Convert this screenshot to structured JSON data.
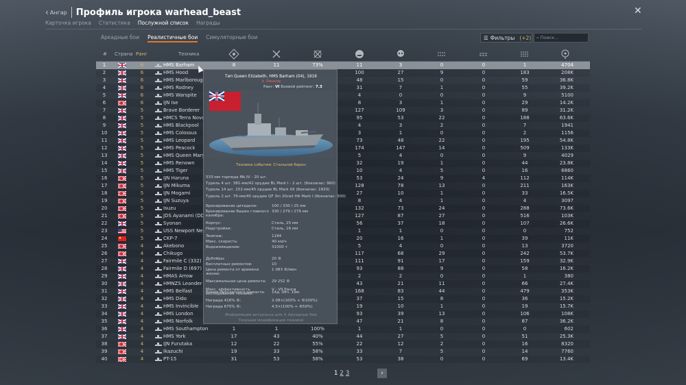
{
  "header": {
    "back_label": "Ангар",
    "title": "Профиль игрока warhead_beast"
  },
  "subtabs": [
    "Карточка игрока",
    "Статистика",
    "Послужной список",
    "Награды"
  ],
  "mode_tabs": [
    "Аркадные бои",
    "Реалистичные бои",
    "Симуляторные бои"
  ],
  "filters": {
    "label": "Фильтры",
    "count": "(+2)"
  },
  "search": {
    "placeholder": "Поиск..."
  },
  "columns": {
    "num": "#",
    "country": "Страна",
    "rank": "Ранг",
    "vehicle": "Техника",
    "icons": [
      "battles-icon",
      "victories-icon",
      "win-rate-icon",
      "ships-destroyed-icon",
      "deaths-icon",
      "aircraft-destroyed-icon",
      "ground-destroyed-icon",
      "naval-destroyed-icon",
      "score-icon"
    ]
  },
  "rows": [
    {
      "n": "1",
      "flag": "uk",
      "rank": "6",
      "name": "HMS Barham",
      "c1": "8",
      "c2": "11",
      "c3": "73%",
      "c4": "11",
      "c5": "3",
      "c6": "0",
      "c7": "0",
      "c8": "1",
      "c9": "4704"
    },
    {
      "n": "2",
      "flag": "uk",
      "rank": "6",
      "name": "HMS Hood",
      "c1": "",
      "c2": "",
      "c3": "",
      "c4": "100",
      "c5": "27",
      "c6": "9",
      "c7": "0",
      "c8": "183",
      "c9": "208K"
    },
    {
      "n": "3",
      "flag": "uk",
      "rank": "6",
      "name": "HMS Marlborough",
      "c1": "",
      "c2": "",
      "c3": "",
      "c4": "48",
      "c5": "15",
      "c6": "0",
      "c7": "0",
      "c8": "59",
      "c9": "36.8K"
    },
    {
      "n": "4",
      "flag": "uk",
      "rank": "6",
      "name": "HMS Rodney",
      "c1": "",
      "c2": "",
      "c3": "",
      "c4": "31",
      "c5": "7",
      "c6": "1",
      "c7": "0",
      "c8": "55",
      "c9": "39.2K"
    },
    {
      "n": "5",
      "flag": "uk",
      "rank": "6",
      "name": "HMS Warspite",
      "c1": "",
      "c2": "",
      "c3": "",
      "c4": "4",
      "c5": "0",
      "c6": "0",
      "c7": "0",
      "c8": "9",
      "c9": "5100"
    },
    {
      "n": "6",
      "flag": "jp",
      "rank": "6",
      "name": "IJN Ise",
      "c1": "",
      "c2": "",
      "c3": "",
      "c4": "8",
      "c5": "3",
      "c6": "1",
      "c7": "0",
      "c8": "29",
      "c9": "14.2K"
    },
    {
      "n": "7",
      "flag": "uk",
      "rank": "5",
      "name": "Brave Borderer",
      "c1": "",
      "c2": "",
      "c3": "",
      "c4": "127",
      "c5": "109",
      "c6": "3",
      "c7": "0",
      "c8": "89",
      "c9": "31.2K"
    },
    {
      "n": "8",
      "flag": "uk",
      "rank": "5",
      "name": "HMCS Terra Nova",
      "c1": "",
      "c2": "",
      "c3": "",
      "c4": "95",
      "c5": "53",
      "c6": "22",
      "c7": "0",
      "c8": "188",
      "c9": "63.6K"
    },
    {
      "n": "9",
      "flag": "uk",
      "rank": "5",
      "name": "HMS Blackpool",
      "c1": "",
      "c2": "",
      "c3": "",
      "c4": "4",
      "c5": "3",
      "c6": "2",
      "c7": "0",
      "c8": "7",
      "c9": "1941"
    },
    {
      "n": "10",
      "flag": "uk",
      "rank": "5",
      "name": "HMS Colossus",
      "c1": "",
      "c2": "",
      "c3": "",
      "c4": "3",
      "c5": "1",
      "c6": "0",
      "c7": "0",
      "c8": "2",
      "c9": "1156"
    },
    {
      "n": "11",
      "flag": "uk",
      "rank": "5",
      "name": "HMS Leopard",
      "c1": "",
      "c2": "",
      "c3": "",
      "c4": "73",
      "c5": "48",
      "c6": "22",
      "c7": "0",
      "c8": "195",
      "c9": "54.8K"
    },
    {
      "n": "12",
      "flag": "uk",
      "rank": "5",
      "name": "HMS Peacock",
      "c1": "",
      "c2": "",
      "c3": "",
      "c4": "174",
      "c5": "147",
      "c6": "14",
      "c7": "0",
      "c8": "509",
      "c9": "133K"
    },
    {
      "n": "13",
      "flag": "uk",
      "rank": "5",
      "name": "HMS Queen Mary",
      "c1": "",
      "c2": "",
      "c3": "",
      "c4": "5",
      "c5": "4",
      "c6": "0",
      "c7": "0",
      "c8": "9",
      "c9": "4029"
    },
    {
      "n": "14",
      "flag": "uk",
      "rank": "5",
      "name": "HMS Renown",
      "c1": "",
      "c2": "",
      "c3": "",
      "c4": "32",
      "c5": "19",
      "c6": "1",
      "c7": "0",
      "c8": "44",
      "c9": "23.8K"
    },
    {
      "n": "15",
      "flag": "uk",
      "rank": "5",
      "name": "HMS Tiger",
      "c1": "",
      "c2": "",
      "c3": "",
      "c4": "10",
      "c5": "4",
      "c6": "5",
      "c7": "0",
      "c8": "16",
      "c9": "6860"
    },
    {
      "n": "16",
      "flag": "jp",
      "rank": "5",
      "name": "IJN Haruna",
      "c1": "",
      "c2": "",
      "c3": "",
      "c4": "53",
      "c5": "24",
      "c6": "9",
      "c7": "4",
      "c8": "112",
      "c9": "114K"
    },
    {
      "n": "17",
      "flag": "jp",
      "rank": "5",
      "name": "IJN Mikuma",
      "c1": "",
      "c2": "",
      "c3": "",
      "c4": "128",
      "c5": "78",
      "c6": "13",
      "c7": "0",
      "c8": "211",
      "c9": "163K"
    },
    {
      "n": "18",
      "flag": "jp",
      "rank": "5",
      "name": "IJN Mogami",
      "c1": "",
      "c2": "",
      "c3": "",
      "c4": "27",
      "c5": "10",
      "c6": "1",
      "c7": "0",
      "c8": "33",
      "c9": "16.5K"
    },
    {
      "n": "19",
      "flag": "jp",
      "rank": "5",
      "name": "IJN Suzuya",
      "c1": "",
      "c2": "",
      "c3": "",
      "c4": "8",
      "c5": "4",
      "c6": "1",
      "c7": "0",
      "c8": "4",
      "c9": "3097"
    },
    {
      "n": "20",
      "flag": "jp",
      "rank": "5",
      "name": "Isuzu",
      "c1": "",
      "c2": "",
      "c3": "",
      "c4": "132",
      "c5": "73",
      "c6": "24",
      "c7": "0",
      "c8": "288",
      "c9": "73.6K"
    },
    {
      "n": "21",
      "flag": "jp",
      "rank": "5",
      "name": "JDS Ayanami (DD-",
      "c1": "",
      "c2": "",
      "c3": "",
      "c4": "127",
      "c5": "87",
      "c6": "27",
      "c7": "0",
      "c8": "516",
      "c9": "103K"
    },
    {
      "n": "22",
      "flag": "uk",
      "rank": "5",
      "name": "Syonan",
      "c1": "",
      "c2": "",
      "c3": "",
      "c4": "56",
      "c5": "37",
      "c6": "18",
      "c7": "0",
      "c8": "107",
      "c9": "26.6K"
    },
    {
      "n": "23",
      "flag": "us",
      "rank": "5",
      "name": "USS Newport New",
      "c1": "",
      "c2": "",
      "c3": "",
      "c4": "1",
      "c5": "1",
      "c6": "0",
      "c7": "0",
      "c8": "0",
      "c9": "752"
    },
    {
      "n": "24",
      "flag": "cn",
      "rank": "5",
      "name": "CKP-7",
      "c1": "",
      "c2": "",
      "c3": "",
      "c4": "20",
      "c5": "16",
      "c6": "1",
      "c7": "0",
      "c8": "39",
      "c9": "11K"
    },
    {
      "n": "25",
      "flag": "jp",
      "rank": "4",
      "name": "Akebono",
      "c1": "",
      "c2": "",
      "c3": "",
      "c4": "5",
      "c5": "4",
      "c6": "0",
      "c7": "0",
      "c8": "13",
      "c9": "3720"
    },
    {
      "n": "26",
      "flag": "jp",
      "rank": "4",
      "name": "Chikugo",
      "c1": "",
      "c2": "",
      "c3": "",
      "c4": "117",
      "c5": "68",
      "c6": "29",
      "c7": "0",
      "c8": "242",
      "c9": "53.7K"
    },
    {
      "n": "27",
      "flag": "uk",
      "rank": "4",
      "name": "Fairmile C (332)",
      "c1": "",
      "c2": "",
      "c3": "",
      "c4": "111",
      "c5": "91",
      "c6": "17",
      "c7": "0",
      "c8": "159",
      "c9": "32.9K"
    },
    {
      "n": "28",
      "flag": "uk",
      "rank": "4",
      "name": "Fairmile D (697)",
      "c1": "",
      "c2": "",
      "c3": "",
      "c4": "93",
      "c5": "88",
      "c6": "9",
      "c7": "0",
      "c8": "58",
      "c9": "16.2K"
    },
    {
      "n": "29",
      "flag": "uk",
      "rank": "4",
      "name": "HMAS Arrow",
      "c1": "",
      "c2": "",
      "c3": "",
      "c4": "2",
      "c5": "2",
      "c6": "0",
      "c7": "0",
      "c8": "1",
      "c9": "380"
    },
    {
      "n": "30",
      "flag": "uk",
      "rank": "4",
      "name": "HMNZS Leander",
      "c1": "",
      "c2": "",
      "c3": "",
      "c4": "43",
      "c5": "21",
      "c6": "11",
      "c7": "0",
      "c8": "66",
      "c9": "27.4K"
    },
    {
      "n": "31",
      "flag": "uk",
      "rank": "4",
      "name": "HMS Belfast",
      "c1": "",
      "c2": "",
      "c3": "",
      "c4": "168",
      "c5": "83",
      "c6": "44",
      "c7": "0",
      "c8": "479",
      "c9": "353K"
    },
    {
      "n": "32",
      "flag": "uk",
      "rank": "4",
      "name": "HMS Dido",
      "c1": "",
      "c2": "",
      "c3": "",
      "c4": "37",
      "c5": "15",
      "c6": "8",
      "c7": "0",
      "c8": "36",
      "c9": "15.2K"
    },
    {
      "n": "33",
      "flag": "uk",
      "rank": "4",
      "name": "HMS Invincible",
      "c1": "",
      "c2": "",
      "c3": "",
      "c4": "19",
      "c5": "10",
      "c6": "1",
      "c7": "0",
      "c8": "19",
      "c9": "15.7K"
    },
    {
      "n": "34",
      "flag": "uk",
      "rank": "4",
      "name": "HMS London",
      "c1": "",
      "c2": "",
      "c3": "",
      "c4": "93",
      "c5": "39",
      "c6": "13",
      "c7": "0",
      "c8": "106",
      "c9": "108K"
    },
    {
      "n": "35",
      "flag": "uk",
      "rank": "4",
      "name": "HMS Norfolk",
      "c1": "",
      "c2": "",
      "c3": "",
      "c4": "47",
      "c5": "21",
      "c6": "8",
      "c7": "0",
      "c8": "87",
      "c9": "36.2K"
    },
    {
      "n": "36",
      "flag": "uk",
      "rank": "4",
      "name": "HMS Southampton",
      "c1": "1",
      "c2": "1",
      "c3": "100%",
      "c4": "1",
      "c5": "1",
      "c6": "0",
      "c7": "0",
      "c8": "0",
      "c9": "602"
    },
    {
      "n": "37",
      "flag": "uk",
      "rank": "4",
      "name": "HMS York",
      "c1": "17",
      "c2": "43",
      "c3": "40%",
      "c4": "44",
      "c5": "27",
      "c6": "5",
      "c7": "0",
      "c8": "51",
      "c9": "25.3K"
    },
    {
      "n": "38",
      "flag": "jp",
      "rank": "4",
      "name": "IJN Furutaka",
      "c1": "12",
      "c2": "22",
      "c3": "55%",
      "c4": "22",
      "c5": "12",
      "c6": "2",
      "c7": "0",
      "c8": "16",
      "c9": "8320"
    },
    {
      "n": "39",
      "flag": "jp",
      "rank": "4",
      "name": "Ikazuchi",
      "c1": "19",
      "c2": "33",
      "c3": "58%",
      "c4": "33",
      "c5": "7",
      "c6": "5",
      "c7": "0",
      "c8": "14",
      "c9": "7760"
    },
    {
      "n": "40",
      "flag": "sw",
      "rank": "4",
      "name": "PT-15",
      "c1": "31",
      "c2": "53",
      "c3": "58%",
      "c4": "53",
      "c5": "38",
      "c6": "0",
      "c7": "0",
      "c8": "69",
      "c9": "13.4K"
    }
  ],
  "tooltip": {
    "header": "Тип Queen Elizabeth, HMS Barham (04), 1916",
    "class": "⚓ Линкор",
    "rank_label": "Ранг: ",
    "rank_value": "VI",
    "br_label": "  Боевой рейтинг: ",
    "br_value": "7.3",
    "event": "Техника события: Стальной барон",
    "armament": [
      "533-мм торпеда Mk.IV - 20 шт.",
      "Турель 4 шт. 381-мм/42 орудие BL Mark I - 2 шт. (боезапас: 960)",
      "Турель 14 шт. 152-мм/45 орудие BL Mark XII (боезапас: 1820)",
      "Турель 2 шт. 76-мм/45 орудие QF 3in 20cwt HA Mark I (боезапас: 300)"
    ],
    "armor": [
      {
        "k": "Бронирование цитадели:",
        "v": "100 / 330 / 25 мм"
      },
      {
        "k": "Бронирование башен главного калибра:",
        "v": "330 / 279 / 279 мм"
      },
      {
        "k": "Корпус:",
        "v": "Сталь, 25 мм"
      },
      {
        "k": "Надстройки:",
        "v": "Сталь, 16 мм"
      }
    ],
    "specs": [
      {
        "k": "Экипаж:",
        "v": "1184"
      },
      {
        "k": "Макс. скорость:",
        "v": "40 км/ч"
      },
      {
        "k": "Водоизмещение:",
        "v": "31000 т"
      }
    ],
    "economy": [
      {
        "k": "Дублёры:",
        "v": "20 ⚙"
      },
      {
        "k": "Бесплатных ремонтов:",
        "v": "10"
      },
      {
        "k": "Цена ремонта от времени жизни:",
        "v": "1 083 ⚙/мин"
      },
      {
        "k": "Максимальная цена ремонта:",
        "v": "29 252 ⚙"
      },
      {
        "k": "Время бесплатного ремонта:",
        "v": "14д. 08ч. 19м."
      }
    ],
    "research": [
      {
        "k": "Макс. эффективность исследования техники:",
        "v": "V - VII Ранги"
      },
      {
        "k": "Награда 416% ⚙:",
        "v": "2.08×(100% + ⚙100%)"
      },
      {
        "k": "Награда 675% ⚙:",
        "v": "4.5×(100% + ⚙50%)"
      }
    ],
    "footer1": "Информация актуальна для  ⚓ Аркадные бои",
    "footer2": "Текущая модификация техники"
  },
  "pager": {
    "p1": "1",
    "p2": "2",
    "p3": "3",
    "next": "›"
  },
  "colors": {
    "accent": "#e07a2a",
    "rank": "#d8b36a"
  }
}
